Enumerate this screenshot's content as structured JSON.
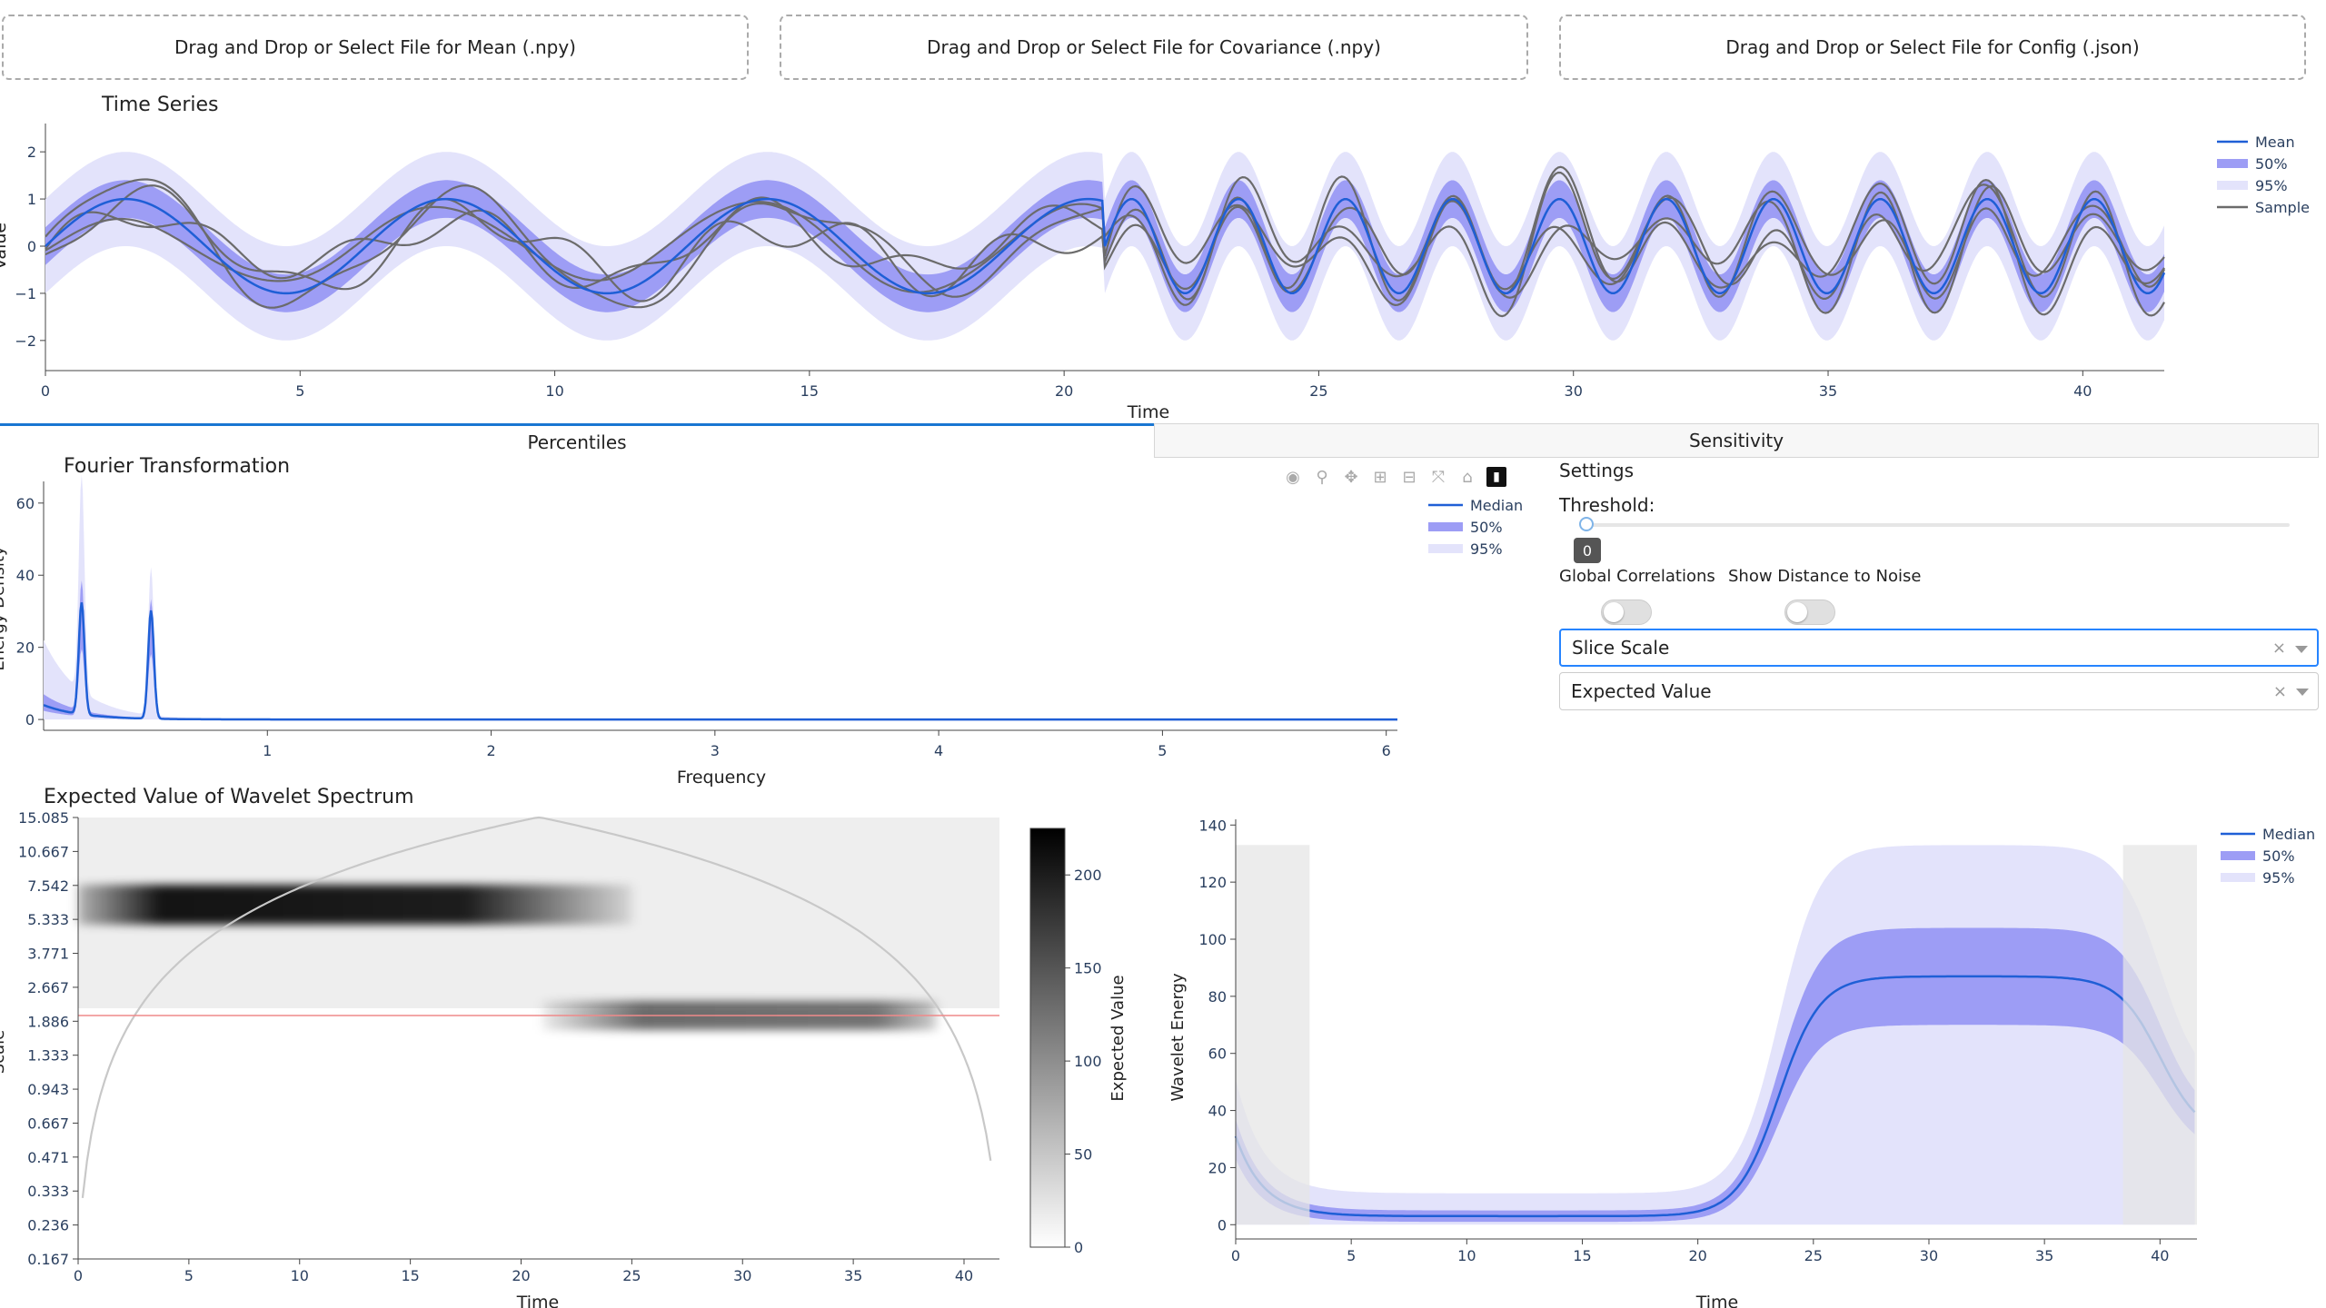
{
  "uploads": {
    "mean_label": "Drag and Drop or Select File for Mean (.npy)",
    "covariance_label": "Drag and Drop or Select File for Covariance (.npy)",
    "config_label": "Drag and Drop or Select File for Config (.json)"
  },
  "tabs": {
    "percentiles": "Percentiles",
    "sensitivity": "Sensitivity"
  },
  "settings": {
    "title": "Settings",
    "threshold_label": "Threshold:",
    "threshold_value": "0",
    "global_correlations_label": "Global Correlations",
    "show_distance_label": "Show Distance to Noise",
    "slice_scale_value": "Slice Scale",
    "expected_value_value": "Expected Value",
    "clear_symbol": "×"
  },
  "modebar": {
    "icons": [
      "camera-icon",
      "zoom-icon",
      "pan-icon",
      "zoom-in-icon",
      "zoom-out-icon",
      "autoscale-icon",
      "reset-axes-icon",
      "plotly-logo-icon"
    ]
  },
  "colors": {
    "mean_line": "#1f5fd6",
    "band50": "#9d9df5",
    "band95": "#e3e3fb",
    "sample_line": "#6b6b6b",
    "cone": "#c8c8c8",
    "slice_line": "#ef8a8a",
    "edge_shade": "#e6e6e6"
  },
  "chart_data": [
    {
      "type": "line",
      "title": "Time Series",
      "xlabel": "Time",
      "ylabel": "Value",
      "xlim": [
        0,
        41.6
      ],
      "ylim": [
        -2.6,
        2.6
      ],
      "x_ticks": [
        "0",
        "5",
        "10",
        "15",
        "20",
        "25",
        "30",
        "35",
        "40"
      ],
      "x_tick_values": [
        0,
        5,
        10,
        15,
        20,
        25,
        30,
        35,
        40
      ],
      "y_ticks": [
        "2",
        "1",
        "0",
        "−1",
        "−2"
      ],
      "y_tick_values": [
        2,
        1,
        0,
        -1,
        -2
      ],
      "legend": [
        "Mean",
        "50%",
        "95%",
        "Sample"
      ],
      "legend_position": "top-right",
      "mean_model": {
        "segment1": {
          "x_range": [
            0,
            20.8
          ],
          "period": 6.3,
          "amplitude": 1
        },
        "segment2": {
          "x_range": [
            20.8,
            41.6
          ],
          "period": 2.1,
          "amplitude": 1
        }
      },
      "band50_halfwidth": 0.4,
      "band95_halfwidth": 1.0,
      "sample_count": 4
    },
    {
      "type": "line",
      "title": "Fourier Transformation",
      "xlabel": "Frequency",
      "ylabel": "Energy Density",
      "xlim": [
        0,
        6.05
      ],
      "ylim": [
        -3,
        66
      ],
      "x_ticks": [
        "1",
        "2",
        "3",
        "4",
        "5",
        "6"
      ],
      "x_tick_values": [
        1,
        2,
        3,
        4,
        5,
        6
      ],
      "y_ticks": [
        "60",
        "40",
        "20",
        "0"
      ],
      "y_tick_values": [
        60,
        40,
        20,
        0
      ],
      "legend": [
        "Median",
        "50%",
        "95%"
      ],
      "legend_position": "top-right",
      "peaks": [
        {
          "x": 0.17,
          "median": 31,
          "p50_hi": 36,
          "p95_hi": 60
        },
        {
          "x": 0.48,
          "median": 30,
          "p50_hi": 33,
          "p95_hi": 41
        }
      ]
    },
    {
      "type": "heatmap",
      "title": "Expected Value of Wavelet Spectrum",
      "xlabel": "Time",
      "ylabel": "Scale",
      "colorbar_label": "Expected Value",
      "xlim": [
        0,
        41.6
      ],
      "x_ticks": [
        "0",
        "5",
        "10",
        "15",
        "20",
        "25",
        "30",
        "35",
        "40"
      ],
      "x_tick_values": [
        0,
        5,
        10,
        15,
        20,
        25,
        30,
        35,
        40
      ],
      "y_ticks": [
        "15.085",
        "10.667",
        "7.542",
        "5.333",
        "3.771",
        "2.667",
        "1.886",
        "1.333",
        "0.943",
        "0.667",
        "0.471",
        "0.333",
        "0.236",
        "0.167"
      ],
      "colorbar_ticks": [
        "200",
        "150",
        "100",
        "50",
        "0"
      ],
      "colorbar_tick_values": [
        200,
        150,
        100,
        50,
        0
      ],
      "colorbar_range": [
        0,
        225
      ],
      "slice_scale": 2.0,
      "hotspots": [
        {
          "t_range": [
            0,
            21
          ],
          "scale": 6.2,
          "value": 225
        },
        {
          "t_range": [
            21,
            41.6
          ],
          "scale": 2.0,
          "value": 130
        }
      ]
    },
    {
      "type": "line",
      "title": "",
      "xlabel": "Time",
      "ylabel": "Wavelet Energy",
      "xlim": [
        0,
        41.6
      ],
      "ylim": [
        -5,
        142
      ],
      "x_ticks": [
        "0",
        "5",
        "10",
        "15",
        "20",
        "25",
        "30",
        "35",
        "40"
      ],
      "x_tick_values": [
        0,
        5,
        10,
        15,
        20,
        25,
        30,
        35,
        40
      ],
      "y_ticks": [
        "140",
        "120",
        "100",
        "80",
        "60",
        "40",
        "20",
        "0"
      ],
      "y_tick_values": [
        140,
        120,
        100,
        80,
        60,
        40,
        20,
        0
      ],
      "legend": [
        "Median",
        "50%",
        "95%"
      ],
      "legend_position": "top-right",
      "levels": {
        "low_median": 3,
        "high_median": 87,
        "low_p50": [
          1,
          5
        ],
        "high_p50": [
          70,
          104
        ],
        "low_p95": [
          0,
          11
        ],
        "high_p95": [
          0,
          133
        ]
      },
      "transition_time": 23.5,
      "edge_shaded": [
        [
          0,
          3.2
        ],
        [
          38.4,
          41.6
        ]
      ]
    }
  ]
}
